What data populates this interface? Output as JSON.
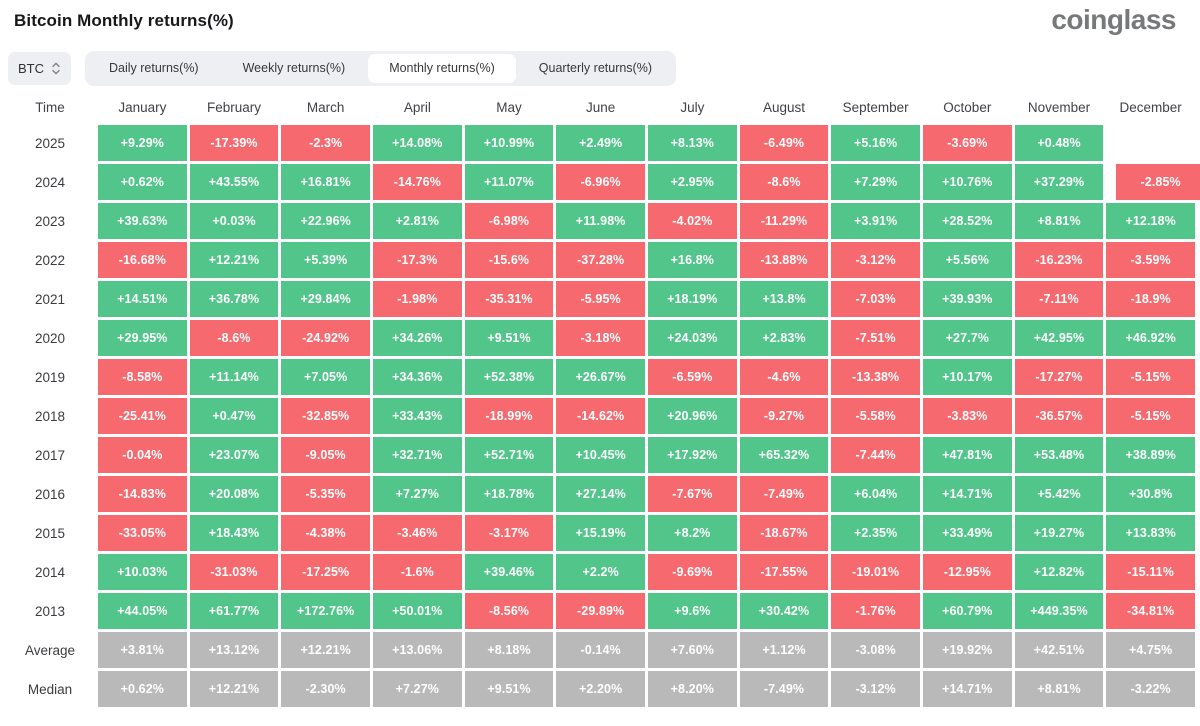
{
  "header": {
    "title": "Bitcoin Monthly returns(%)",
    "logo": "coinglass"
  },
  "toolbar": {
    "symbol": "BTC",
    "sort_icon": "up-down-chevrons",
    "tabs": [
      {
        "label": "Daily returns(%)",
        "active": false
      },
      {
        "label": "Weekly returns(%)",
        "active": false
      },
      {
        "label": "Monthly returns(%)",
        "active": true
      },
      {
        "label": "Quarterly returns(%)",
        "active": false
      }
    ]
  },
  "colors": {
    "positive": "#52c58b",
    "negative": "#f5696f",
    "summary": "#b9b9b9"
  },
  "table": {
    "columns": [
      "Time",
      "January",
      "February",
      "March",
      "April",
      "May",
      "June",
      "July",
      "August",
      "September",
      "October",
      "November",
      "December"
    ],
    "rows": [
      {
        "label": "2025",
        "type": "year",
        "values": [
          "+9.29%",
          "-17.39%",
          "-2.3%",
          "+14.08%",
          "+10.99%",
          "+2.49%",
          "+8.13%",
          "-6.49%",
          "+5.16%",
          "-3.69%",
          "+0.48%",
          null
        ]
      },
      {
        "label": "2024",
        "type": "year",
        "values": [
          "+0.62%",
          "+43.55%",
          "+16.81%",
          "-14.76%",
          "+11.07%",
          "-6.96%",
          "+2.95%",
          "-8.6%",
          "+7.29%",
          "+10.76%",
          "+37.29%",
          "-2.85%"
        ]
      },
      {
        "label": "2023",
        "type": "year",
        "values": [
          "+39.63%",
          "+0.03%",
          "+22.96%",
          "+2.81%",
          "-6.98%",
          "+11.98%",
          "-4.02%",
          "-11.29%",
          "+3.91%",
          "+28.52%",
          "+8.81%",
          "+12.18%"
        ]
      },
      {
        "label": "2022",
        "type": "year",
        "values": [
          "-16.68%",
          "+12.21%",
          "+5.39%",
          "-17.3%",
          "-15.6%",
          "-37.28%",
          "+16.8%",
          "-13.88%",
          "-3.12%",
          "+5.56%",
          "-16.23%",
          "-3.59%"
        ]
      },
      {
        "label": "2021",
        "type": "year",
        "values": [
          "+14.51%",
          "+36.78%",
          "+29.84%",
          "-1.98%",
          "-35.31%",
          "-5.95%",
          "+18.19%",
          "+13.8%",
          "-7.03%",
          "+39.93%",
          "-7.11%",
          "-18.9%"
        ]
      },
      {
        "label": "2020",
        "type": "year",
        "values": [
          "+29.95%",
          "-8.6%",
          "-24.92%",
          "+34.26%",
          "+9.51%",
          "-3.18%",
          "+24.03%",
          "+2.83%",
          "-7.51%",
          "+27.7%",
          "+42.95%",
          "+46.92%"
        ]
      },
      {
        "label": "2019",
        "type": "year",
        "values": [
          "-8.58%",
          "+11.14%",
          "+7.05%",
          "+34.36%",
          "+52.38%",
          "+26.67%",
          "-6.59%",
          "-4.6%",
          "-13.38%",
          "+10.17%",
          "-17.27%",
          "-5.15%"
        ]
      },
      {
        "label": "2018",
        "type": "year",
        "values": [
          "-25.41%",
          "+0.47%",
          "-32.85%",
          "+33.43%",
          "-18.99%",
          "-14.62%",
          "+20.96%",
          "-9.27%",
          "-5.58%",
          "-3.83%",
          "-36.57%",
          "-5.15%"
        ]
      },
      {
        "label": "2017",
        "type": "year",
        "values": [
          "-0.04%",
          "+23.07%",
          "-9.05%",
          "+32.71%",
          "+52.71%",
          "+10.45%",
          "+17.92%",
          "+65.32%",
          "-7.44%",
          "+47.81%",
          "+53.48%",
          "+38.89%"
        ]
      },
      {
        "label": "2016",
        "type": "year",
        "values": [
          "-14.83%",
          "+20.08%",
          "-5.35%",
          "+7.27%",
          "+18.78%",
          "+27.14%",
          "-7.67%",
          "-7.49%",
          "+6.04%",
          "+14.71%",
          "+5.42%",
          "+30.8%"
        ]
      },
      {
        "label": "2015",
        "type": "year",
        "values": [
          "-33.05%",
          "+18.43%",
          "-4.38%",
          "-3.46%",
          "-3.17%",
          "+15.19%",
          "+8.2%",
          "-18.67%",
          "+2.35%",
          "+33.49%",
          "+19.27%",
          "+13.83%"
        ]
      },
      {
        "label": "2014",
        "type": "year",
        "values": [
          "+10.03%",
          "-31.03%",
          "-17.25%",
          "-1.6%",
          "+39.46%",
          "+2.2%",
          "-9.69%",
          "-17.55%",
          "-19.01%",
          "-12.95%",
          "+12.82%",
          "-15.11%"
        ]
      },
      {
        "label": "2013",
        "type": "year",
        "values": [
          "+44.05%",
          "+61.77%",
          "+172.76%",
          "+50.01%",
          "-8.56%",
          "-29.89%",
          "+9.6%",
          "+30.42%",
          "-1.76%",
          "+60.79%",
          "+449.35%",
          "-34.81%"
        ]
      },
      {
        "label": "Average",
        "type": "summary",
        "values": [
          "+3.81%",
          "+13.12%",
          "+12.21%",
          "+13.06%",
          "+8.18%",
          "-0.14%",
          "+7.60%",
          "+1.12%",
          "-3.08%",
          "+19.92%",
          "+42.51%",
          "+4.75%"
        ]
      },
      {
        "label": "Median",
        "type": "summary",
        "values": [
          "+0.62%",
          "+12.21%",
          "-2.30%",
          "+7.27%",
          "+9.51%",
          "+2.20%",
          "+8.20%",
          "-7.49%",
          "-3.12%",
          "+14.71%",
          "+8.81%",
          "-3.22%"
        ]
      }
    ]
  }
}
